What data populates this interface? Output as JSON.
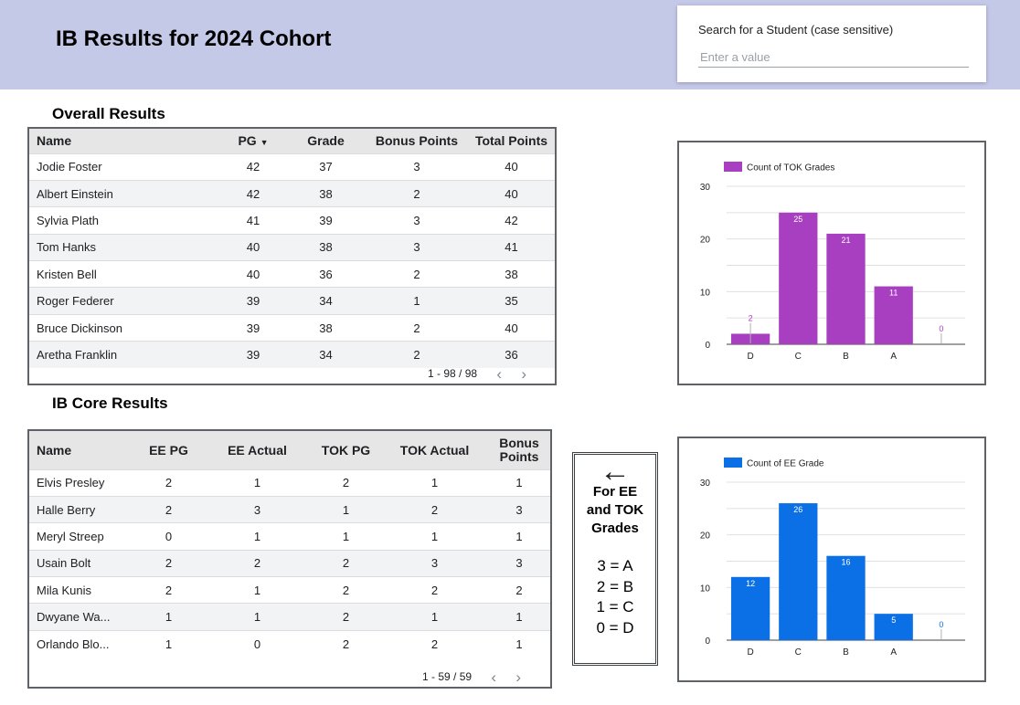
{
  "header": {
    "title": "IB Results for 2024 Cohort"
  },
  "search": {
    "label": "Search for a Student (case sensitive)",
    "placeholder": "Enter a value"
  },
  "overall": {
    "title": "Overall Results",
    "columns": [
      "Name",
      "PG",
      "Grade",
      "Bonus Points",
      "Total Points"
    ],
    "sort_indicator": "▼",
    "rows": [
      [
        "Jodie Foster",
        "42",
        "37",
        "3",
        "40"
      ],
      [
        "Albert Einstein",
        "42",
        "38",
        "2",
        "40"
      ],
      [
        "Sylvia Plath",
        "41",
        "39",
        "3",
        "42"
      ],
      [
        "Tom Hanks",
        "40",
        "38",
        "3",
        "41"
      ],
      [
        "Kristen Bell",
        "40",
        "36",
        "2",
        "38"
      ],
      [
        "Roger Federer",
        "39",
        "34",
        "1",
        "35"
      ],
      [
        "Bruce Dickinson",
        "39",
        "38",
        "2",
        "40"
      ],
      [
        "Aretha Franklin",
        "39",
        "34",
        "2",
        "36"
      ]
    ],
    "pagination": "1 - 98 / 98"
  },
  "core": {
    "title": "IB Core Results",
    "columns": [
      "Name",
      "EE PG",
      "EE Actual",
      "TOK PG",
      "TOK Actual",
      "Bonus Points"
    ],
    "rows": [
      [
        "Elvis Presley",
        "2",
        "1",
        "2",
        "1",
        "1"
      ],
      [
        "Halle Berry",
        "2",
        "3",
        "1",
        "2",
        "3"
      ],
      [
        "Meryl Streep",
        "0",
        "1",
        "1",
        "1",
        "1"
      ],
      [
        "Usain Bolt",
        "2",
        "2",
        "2",
        "3",
        "3"
      ],
      [
        "Mila Kunis",
        "2",
        "1",
        "2",
        "2",
        "2"
      ],
      [
        "Dwyane Wa...",
        "1",
        "1",
        "2",
        "1",
        "1"
      ],
      [
        "Orlando Blo...",
        "1",
        "0",
        "2",
        "2",
        "1"
      ]
    ],
    "pagination": "1 - 59 / 59"
  },
  "grade_key": {
    "arrow": "←",
    "heading": [
      "For EE",
      "and TOK",
      "Grades"
    ],
    "mapping": [
      "3 = A",
      "2 = B",
      "1 = C",
      "0 = D"
    ]
  },
  "colors": {
    "header_bg": "#c5c9e8",
    "tok_bar": "#a83fc0",
    "ee_bar": "#0b6fe6"
  },
  "chart_data": [
    {
      "type": "bar",
      "categories": [
        "D",
        "C",
        "B",
        "A",
        ""
      ],
      "series": [
        {
          "name": "Count of TOK Grades",
          "values": [
            2,
            25,
            21,
            11,
            0
          ]
        }
      ],
      "ylim": [
        0,
        30
      ],
      "yticks": [
        0,
        10,
        20,
        30
      ],
      "grid": true,
      "legend": "top-left",
      "color": "#a83fc0"
    },
    {
      "type": "bar",
      "categories": [
        "D",
        "C",
        "B",
        "A",
        ""
      ],
      "series": [
        {
          "name": "Count of EE Grade",
          "values": [
            12,
            26,
            16,
            5,
            0
          ]
        }
      ],
      "ylim": [
        0,
        30
      ],
      "yticks": [
        0,
        10,
        20,
        30
      ],
      "grid": true,
      "legend": "top-left",
      "color": "#0b6fe6"
    }
  ]
}
